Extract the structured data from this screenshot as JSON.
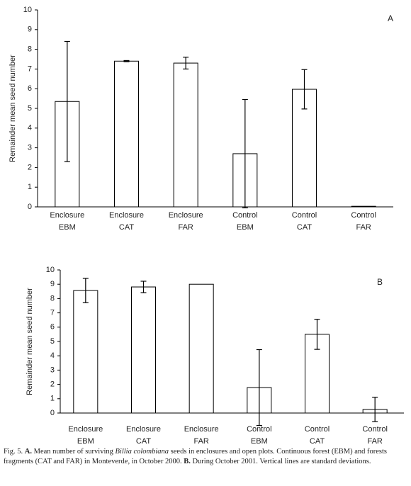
{
  "chart_data": [
    {
      "type": "bar",
      "annotation": "A",
      "ylabel": "Remainder mean seed number",
      "categories": [
        [
          "Enclosure",
          "EBM"
        ],
        [
          "Enclosure",
          "CAT"
        ],
        [
          "Enclosure",
          "FAR"
        ],
        [
          "Control",
          "EBM"
        ],
        [
          "Control",
          "CAT"
        ],
        [
          "Control",
          "FAR"
        ]
      ],
      "values": [
        5.35,
        7.4,
        7.3,
        2.7,
        5.97,
        0.03
      ],
      "errors": [
        3.05,
        0.03,
        0.3,
        2.75,
        1.0,
        null
      ],
      "color": "#ffffff",
      "edgecolor": "#000000",
      "ylim": [
        0,
        10
      ],
      "yticks": [
        0,
        1,
        2,
        3,
        4,
        5,
        6,
        7,
        8,
        9,
        10
      ],
      "grid": false
    },
    {
      "type": "bar",
      "annotation": "B",
      "ylabel": "Remainder mean seed number",
      "categories": [
        [
          "Enclosure",
          "EBM"
        ],
        [
          "Enclosure",
          "CAT"
        ],
        [
          "Enclosure",
          "FAR"
        ],
        [
          "Control",
          "EBM"
        ],
        [
          "Control",
          "CAT"
        ],
        [
          "Control",
          "FAR"
        ]
      ],
      "values": [
        8.56,
        8.81,
        9.0,
        1.78,
        5.5,
        0.25
      ],
      "errors": [
        0.85,
        0.4,
        null,
        2.65,
        1.05,
        0.85
      ],
      "color": "#ffffff",
      "edgecolor": "#000000",
      "ylim": [
        0,
        10
      ],
      "yticks": [
        0,
        1,
        2,
        3,
        4,
        5,
        6,
        7,
        8,
        9,
        10
      ],
      "grid": false
    }
  ],
  "caption": [
    "Fig. 5. ",
    "A.",
    " Mean number of surviving ",
    "Billia colombiana",
    " seeds in enclosures and open plots. Continuous forest (EBM) and forests fragments (CAT and FAR) in Monteverde, in October 2000. ",
    "B.",
    " During October 2001. Vertical lines are standard deviations."
  ]
}
